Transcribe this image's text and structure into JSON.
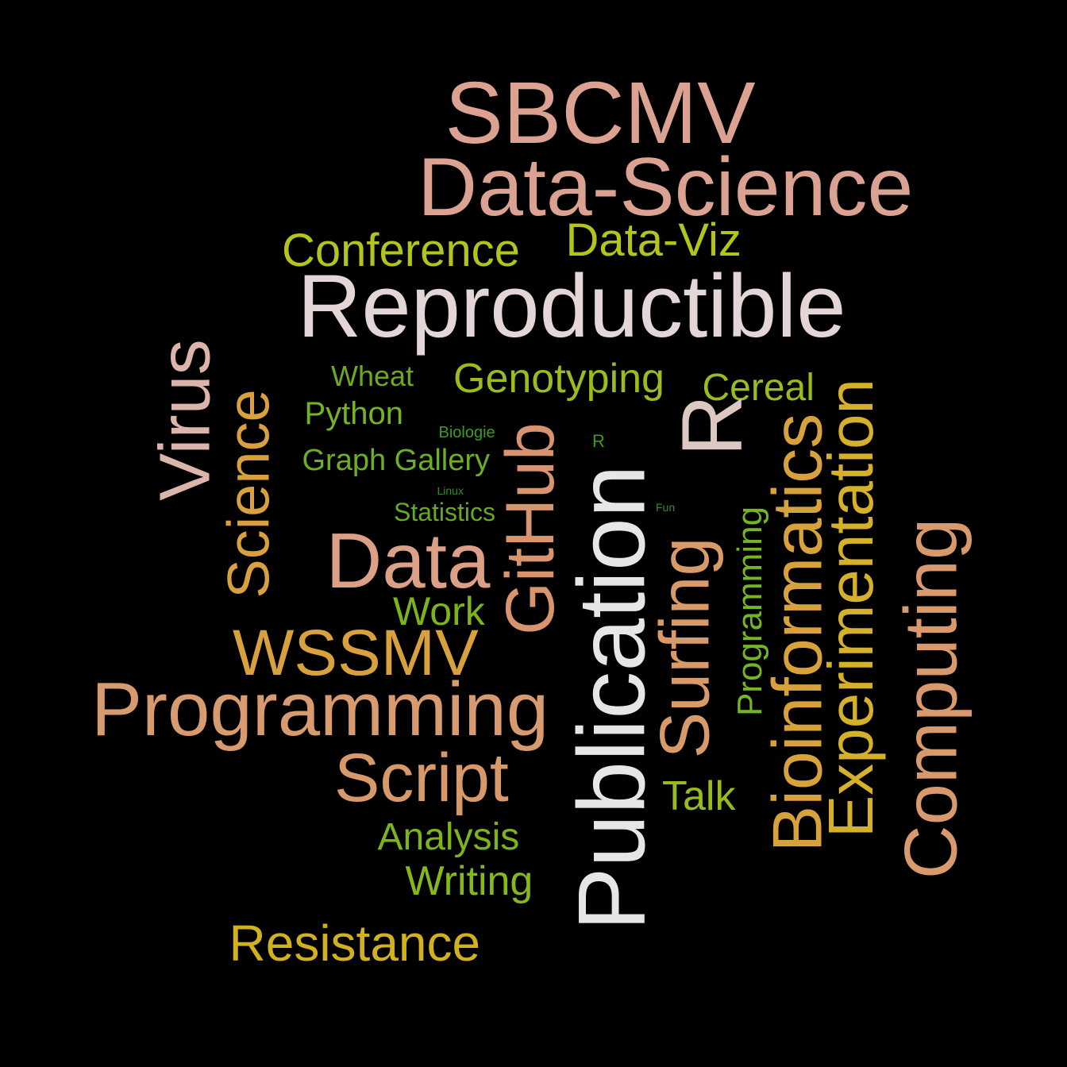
{
  "background": "#000000",
  "words": [
    {
      "text": "SBCMV",
      "color": "#dca291"
    },
    {
      "text": "Data-Science",
      "color": "#dca291"
    },
    {
      "text": "Conference",
      "color": "#b3c41a"
    },
    {
      "text": "Data-Viz",
      "color": "#b3c41a"
    },
    {
      "text": "Reproductible",
      "color": "#e4d6d6"
    },
    {
      "text": "Virus",
      "color": "#dcb5aa"
    },
    {
      "text": "Science",
      "color": "#d9a13e"
    },
    {
      "text": "Wheat",
      "color": "#6ea822"
    },
    {
      "text": "Python",
      "color": "#75b324"
    },
    {
      "text": "Genotyping",
      "color": "#9cbb1c"
    },
    {
      "text": "Cereal",
      "color": "#99bc1a"
    },
    {
      "text": "Biologie",
      "color": "#3d9a1f"
    },
    {
      "text": "R",
      "color": "#3d9a1f"
    },
    {
      "text": "Graph Gallery",
      "color": "#6daf24"
    },
    {
      "text": "GitHub",
      "color": "#d8946f"
    },
    {
      "text": "Linux",
      "color": "#2f8f2a"
    },
    {
      "text": "Fun",
      "color": "#2f8f2a"
    },
    {
      "text": "Statistics",
      "color": "#62ab23"
    },
    {
      "text": "R",
      "color": "#dcc8c1"
    },
    {
      "text": "Data",
      "color": "#dca087"
    },
    {
      "text": "Publication",
      "color": "#e6e6e6"
    },
    {
      "text": "Surfing",
      "color": "#d89a68"
    },
    {
      "text": "Programming",
      "color": "#73b524"
    },
    {
      "text": "Bioinformatics",
      "color": "#d7a23c"
    },
    {
      "text": "Experimentation",
      "color": "#d4b02b"
    },
    {
      "text": "Computing",
      "color": "#d8996d"
    },
    {
      "text": "Work",
      "color": "#7db41b"
    },
    {
      "text": "WSSMV",
      "color": "#d9a13e"
    },
    {
      "text": "Programming",
      "color": "#d89a6f"
    },
    {
      "text": "Script",
      "color": "#d8996a"
    },
    {
      "text": "Talk",
      "color": "#99bc1a"
    },
    {
      "text": "Analysis",
      "color": "#7db41b"
    },
    {
      "text": "Writing",
      "color": "#85b91a"
    },
    {
      "text": "Resistance",
      "color": "#d2b11f"
    }
  ]
}
